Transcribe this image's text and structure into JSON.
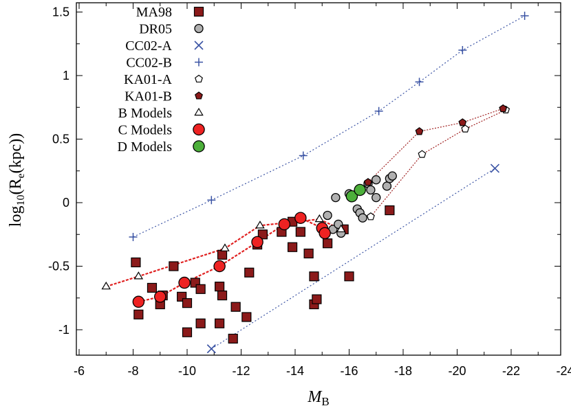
{
  "chart_data": {
    "type": "scatter",
    "title": "",
    "xlabel": "M",
    "xlabel_sub": "B",
    "ylabel": "log",
    "ylabel_sub1": "10",
    "ylabel_mid": "(R",
    "ylabel_sub2": "e",
    "ylabel_end": "(kpc))",
    "xlim": [
      -6,
      -24
    ],
    "ylim": [
      -1.2,
      1.55
    ],
    "xticks": [
      -6,
      -8,
      -10,
      -12,
      -14,
      -16,
      -18,
      -20,
      -22,
      -24
    ],
    "xtick_labels": [
      "-6",
      "-8",
      "-10",
      "-12",
      "-14",
      "-16",
      "-18",
      "-20",
      "-22",
      "-24"
    ],
    "yticks": [
      -1,
      -0.5,
      0,
      0.5,
      1,
      1.5
    ],
    "ytick_labels": [
      "-1",
      "-0.5",
      "0",
      "0.5",
      "1",
      "1.5"
    ],
    "legend_position": "top-left",
    "series": [
      {
        "name": "MA98",
        "marker": "square",
        "fill": "#8b1a1a",
        "stroke": "#000000",
        "line": false,
        "points": [
          [
            -8.1,
            -0.47
          ],
          [
            -8.2,
            -0.88
          ],
          [
            -8.7,
            -0.67
          ],
          [
            -9.0,
            -0.8
          ],
          [
            -9.1,
            -0.73
          ],
          [
            -9.5,
            -0.5
          ],
          [
            -9.8,
            -0.74
          ],
          [
            -10.0,
            -0.79
          ],
          [
            -10.0,
            -1.02
          ],
          [
            -10.3,
            -0.63
          ],
          [
            -10.5,
            -0.68
          ],
          [
            -10.5,
            -0.95
          ],
          [
            -11.2,
            -0.66
          ],
          [
            -11.2,
            -0.95
          ],
          [
            -11.3,
            -0.41
          ],
          [
            -11.3,
            -0.73
          ],
          [
            -11.7,
            -1.07
          ],
          [
            -11.8,
            -0.82
          ],
          [
            -12.2,
            -0.9
          ],
          [
            -12.3,
            -0.55
          ],
          [
            -12.6,
            -0.33
          ],
          [
            -12.8,
            -0.25
          ],
          [
            -13.5,
            -0.23
          ],
          [
            -13.9,
            -0.15
          ],
          [
            -14.2,
            -0.23
          ],
          [
            -14.5,
            -0.4
          ],
          [
            -14.7,
            -0.58
          ],
          [
            -14.7,
            -0.8
          ],
          [
            -14.8,
            -0.76
          ],
          [
            -15.2,
            -0.32
          ],
          [
            -15.8,
            -0.21
          ],
          [
            -16.0,
            -0.58
          ],
          [
            -17.5,
            -0.06
          ],
          [
            -13.9,
            -0.35
          ]
        ]
      },
      {
        "name": "DR05",
        "marker": "circle",
        "fill": "#b0b0b0",
        "stroke": "#000000",
        "line": false,
        "points": [
          [
            -15.2,
            -0.1
          ],
          [
            -15.4,
            -0.21
          ],
          [
            -15.5,
            0.04
          ],
          [
            -15.6,
            -0.17
          ],
          [
            -15.7,
            -0.24
          ],
          [
            -16.0,
            0.07
          ],
          [
            -16.3,
            -0.05
          ],
          [
            -16.4,
            -0.08
          ],
          [
            -16.5,
            -0.12
          ],
          [
            -16.7,
            0.15
          ],
          [
            -16.8,
            0.1
          ],
          [
            -17.0,
            0.04
          ],
          [
            -17.0,
            0.18
          ],
          [
            -17.4,
            0.13
          ],
          [
            -17.5,
            0.19
          ],
          [
            -17.6,
            0.21
          ]
        ]
      },
      {
        "name": "CC02-A",
        "marker": "x",
        "fill": "none",
        "stroke": "#3a53a4",
        "line": true,
        "line_color": "#3a53a4",
        "dash": "2,3",
        "points": [
          [
            -10.9,
            -1.15
          ],
          [
            -21.4,
            0.27
          ]
        ]
      },
      {
        "name": "CC02-B",
        "marker": "plus",
        "fill": "none",
        "stroke": "#3a53a4",
        "line": true,
        "line_color": "#3a53a4",
        "dash": "2,3",
        "points": [
          [
            -8.0,
            -0.27
          ],
          [
            -10.9,
            0.02
          ],
          [
            -14.3,
            0.37
          ],
          [
            -17.1,
            0.72
          ],
          [
            -18.6,
            0.95
          ],
          [
            -20.2,
            1.2
          ],
          [
            -22.5,
            1.47
          ]
        ]
      },
      {
        "name": "KA01-A",
        "marker": "pentagon",
        "fill": "#ffffff",
        "stroke": "#000000",
        "line": true,
        "line_color": "#a02020",
        "dash": "2,2",
        "points": [
          [
            -16.8,
            -0.11
          ],
          [
            -18.7,
            0.38
          ],
          [
            -20.3,
            0.58
          ],
          [
            -21.8,
            0.73
          ]
        ]
      },
      {
        "name": "KA01-B",
        "marker": "pentagon",
        "fill": "#8b1a1a",
        "stroke": "#000000",
        "line": true,
        "line_color": "#a02020",
        "dash": "2,2",
        "points": [
          [
            -16.7,
            0.16
          ],
          [
            -18.6,
            0.56
          ],
          [
            -20.2,
            0.63
          ],
          [
            -21.7,
            0.74
          ]
        ]
      },
      {
        "name": "B Models",
        "marker": "triangle",
        "fill": "#ffffff",
        "stroke": "#000000",
        "line": true,
        "line_color": "#e02020",
        "dash": "4,2",
        "line_width": 2.2,
        "points": [
          [
            -7.0,
            -0.66
          ],
          [
            -8.2,
            -0.58
          ],
          [
            -11.4,
            -0.36
          ],
          [
            -12.7,
            -0.18
          ],
          [
            -14.9,
            -0.13
          ],
          [
            -15.7,
            -0.21
          ]
        ]
      },
      {
        "name": "C Models",
        "marker": "circle",
        "fill": "#ee2222",
        "stroke": "#000000",
        "line": true,
        "line_color": "#e02020",
        "dash": "4,2",
        "line_width": 2.2,
        "size": 1.35,
        "points": [
          [
            -8.2,
            -0.78
          ],
          [
            -9.0,
            -0.74
          ],
          [
            -9.9,
            -0.63
          ],
          [
            -11.2,
            -0.5
          ],
          [
            -12.6,
            -0.31
          ],
          [
            -13.6,
            -0.17
          ],
          [
            -14.2,
            -0.12
          ],
          [
            -15.0,
            -0.2
          ],
          [
            -15.1,
            -0.24
          ]
        ]
      },
      {
        "name": "D Models",
        "marker": "circle",
        "fill": "#4caf3a",
        "stroke": "#000000",
        "line": false,
        "size": 1.35,
        "points": [
          [
            -16.1,
            0.05
          ],
          [
            -16.4,
            0.1
          ]
        ]
      }
    ]
  }
}
